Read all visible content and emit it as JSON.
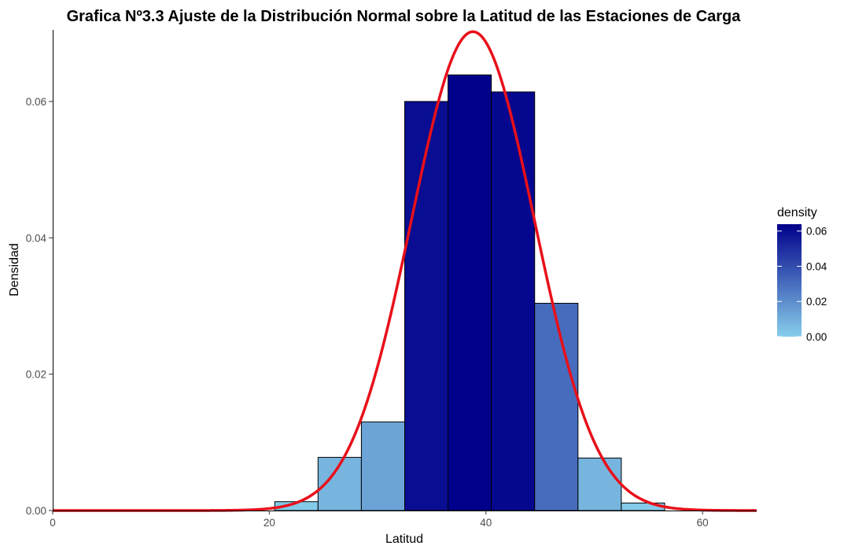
{
  "chart_data": {
    "type": "histogram",
    "title": "Grafica Nº3.3 Ajuste de la Distribución Normal sobre la Latitud de las Estaciones de Carga",
    "xlabel": "Latitud",
    "ylabel": "Densidad",
    "xlim": [
      0,
      65
    ],
    "ylim": [
      0,
      0.0705
    ],
    "x_ticks": [
      0,
      20,
      40,
      60
    ],
    "y_ticks": [
      0.0,
      0.02,
      0.04,
      0.06
    ],
    "bins": [
      {
        "x0": 20.5,
        "x1": 24.5,
        "density": 0.0013
      },
      {
        "x0": 24.5,
        "x1": 28.5,
        "density": 0.0078
      },
      {
        "x0": 28.5,
        "x1": 32.5,
        "density": 0.013
      },
      {
        "x0": 32.5,
        "x1": 36.5,
        "density": 0.06
      },
      {
        "x0": 36.5,
        "x1": 40.5,
        "density": 0.0639
      },
      {
        "x0": 40.5,
        "x1": 44.5,
        "density": 0.0614
      },
      {
        "x0": 44.5,
        "x1": 48.5,
        "density": 0.0304
      },
      {
        "x0": 48.5,
        "x1": 52.5,
        "density": 0.0077
      },
      {
        "x0": 52.5,
        "x1": 56.5,
        "density": 0.0011
      }
    ],
    "normal_fit": {
      "mean": 38.8,
      "sd": 5.68,
      "color": "#e8101a"
    },
    "fill_scale": {
      "low": "#87ceeb",
      "high": "#00008b",
      "min": 0,
      "max": 0.0639
    },
    "legend": {
      "title": "density",
      "ticks": [
        "0.00",
        "0.02",
        "0.04",
        "0.06"
      ],
      "tick_values": [
        0,
        0.02,
        0.04,
        0.06
      ],
      "position": "right"
    },
    "grid": false
  }
}
